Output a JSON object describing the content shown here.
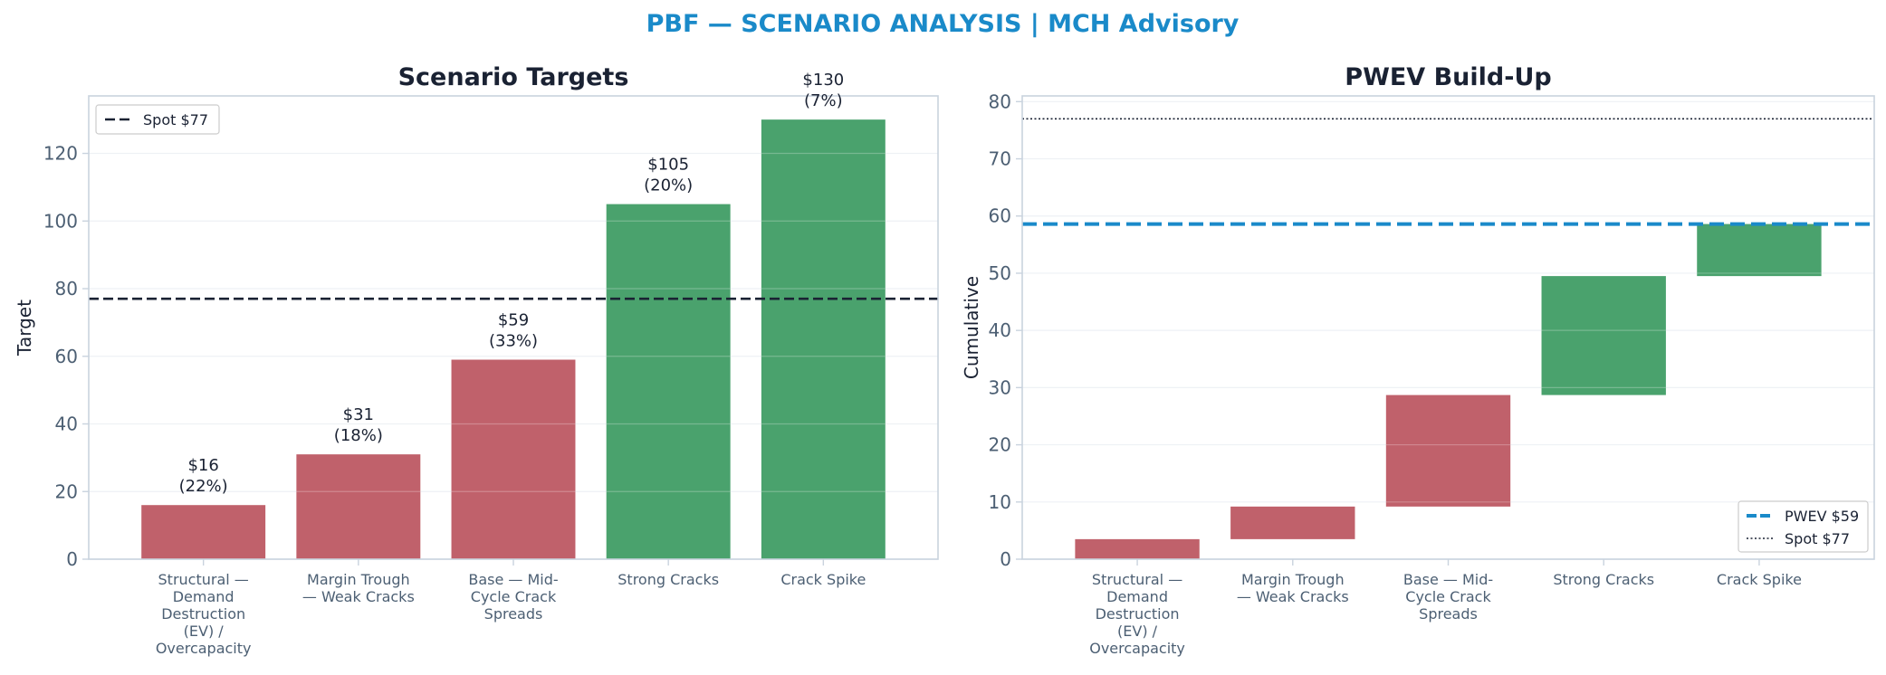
{
  "suptitle": "PBF — SCENARIO ANALYSIS | MCH Advisory",
  "colors": {
    "title_accent": "#1a8ac9",
    "bear": "#c0616b",
    "bull": "#4aa26d",
    "spot_line": "#1a2233",
    "pwev_line": "#1a8ac9",
    "axis_text": "#4c5f73",
    "label_text": "#1a2233",
    "grid": "#eef1f5",
    "frame": "#c9d3de"
  },
  "chart_data": [
    {
      "type": "bar",
      "title": "Scenario Targets",
      "xlabel": "",
      "ylabel": "Target",
      "categories": [
        "Structural — Demand Destruction (EV) / Overcapacity",
        "Margin Trough — Weak Cracks",
        "Base — Mid-Cycle Crack Spreads",
        "Strong Cracks",
        "Crack Spike"
      ],
      "category_lines": [
        [
          "Structural —",
          "Demand",
          "Destruction",
          "(EV) /",
          "Overcapacity"
        ],
        [
          "Margin Trough",
          "— Weak Cracks"
        ],
        [
          "Base — Mid-",
          "Cycle Crack",
          "Spreads"
        ],
        [
          "Strong Cracks"
        ],
        [
          "Crack Spike"
        ]
      ],
      "values": [
        16,
        31,
        59,
        105,
        130
      ],
      "bar_labels": [
        [
          "$16",
          "(22%)"
        ],
        [
          "$31",
          "(18%)"
        ],
        [
          "$59",
          "(33%)"
        ],
        [
          "$105",
          "(20%)"
        ],
        [
          "$130",
          "(7%)"
        ]
      ],
      "bar_colors": [
        "bear",
        "bear",
        "bear",
        "bull",
        "bull"
      ],
      "reference_line": {
        "value": 77,
        "label": "Spot $77",
        "style": "dashed"
      },
      "ylim": [
        0,
        137
      ],
      "yticks": [
        0,
        20,
        40,
        60,
        80,
        100,
        120
      ],
      "grid": true,
      "legend": "top-left"
    },
    {
      "type": "bar",
      "subtype": "waterfall",
      "title": "PWEV Build-Up",
      "xlabel": "",
      "ylabel": "Cumulative",
      "categories": [
        "Structural — Demand Destruction (EV) / Overcapacity",
        "Margin Trough — Weak Cracks",
        "Base — Mid-Cycle Crack Spreads",
        "Strong Cracks",
        "Crack Spike"
      ],
      "category_lines": [
        [
          "Structural —",
          "Demand",
          "Destruction",
          "(EV) /",
          "Overcapacity"
        ],
        [
          "Margin Trough",
          "— Weak Cracks"
        ],
        [
          "Base — Mid-",
          "Cycle Crack",
          "Spreads"
        ],
        [
          "Strong Cracks"
        ],
        [
          "Crack Spike"
        ]
      ],
      "bars": [
        {
          "bottom": 0,
          "top": 3.5
        },
        {
          "bottom": 3.5,
          "top": 9.2
        },
        {
          "bottom": 9.2,
          "top": 28.7
        },
        {
          "bottom": 28.7,
          "top": 49.5
        },
        {
          "bottom": 49.5,
          "top": 58.6
        }
      ],
      "bar_colors": [
        "bear",
        "bear",
        "bear",
        "bull",
        "bull"
      ],
      "reference_lines": [
        {
          "value": 58.6,
          "label": "PWEV $59",
          "style": "dashed"
        },
        {
          "value": 77,
          "label": "Spot $77",
          "style": "dotted"
        }
      ],
      "ylim": [
        0,
        81
      ],
      "yticks": [
        0,
        10,
        20,
        30,
        40,
        50,
        60,
        70,
        80
      ],
      "grid": true,
      "legend": "bottom-right"
    }
  ]
}
